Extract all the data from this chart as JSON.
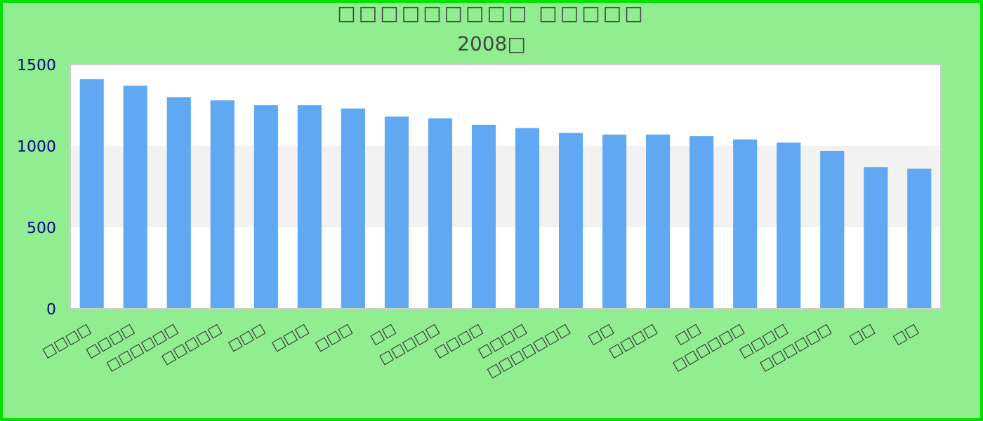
{
  "chart_data": {
    "type": "bar",
    "title": "□□□□□□□□□ □□□□□",
    "subtitle": "2008□",
    "categories": [
      "□□□□",
      "□□□□",
      "□□□□□□",
      "□□□□□",
      "□□□",
      "□□□",
      "□□□",
      "□□",
      "□□□□□",
      "□□□□",
      "□□□□",
      "□□□□□□□",
      "□□",
      "□□□□",
      "□□",
      "□□□□□□",
      "□□□□",
      "□□□□□□",
      "□□",
      "□□"
    ],
    "values": [
      1410,
      1370,
      1300,
      1280,
      1250,
      1250,
      1230,
      1180,
      1170,
      1130,
      1110,
      1080,
      1070,
      1070,
      1060,
      1040,
      1020,
      970,
      870,
      860
    ],
    "color": "#60a8f2",
    "ylim": [
      0,
      1500
    ],
    "yticks": [
      0,
      500,
      1000,
      1500
    ],
    "bands": [
      {
        "axis": "y",
        "from": 500,
        "to": 1000,
        "color": "#f2f2f2"
      }
    ]
  }
}
